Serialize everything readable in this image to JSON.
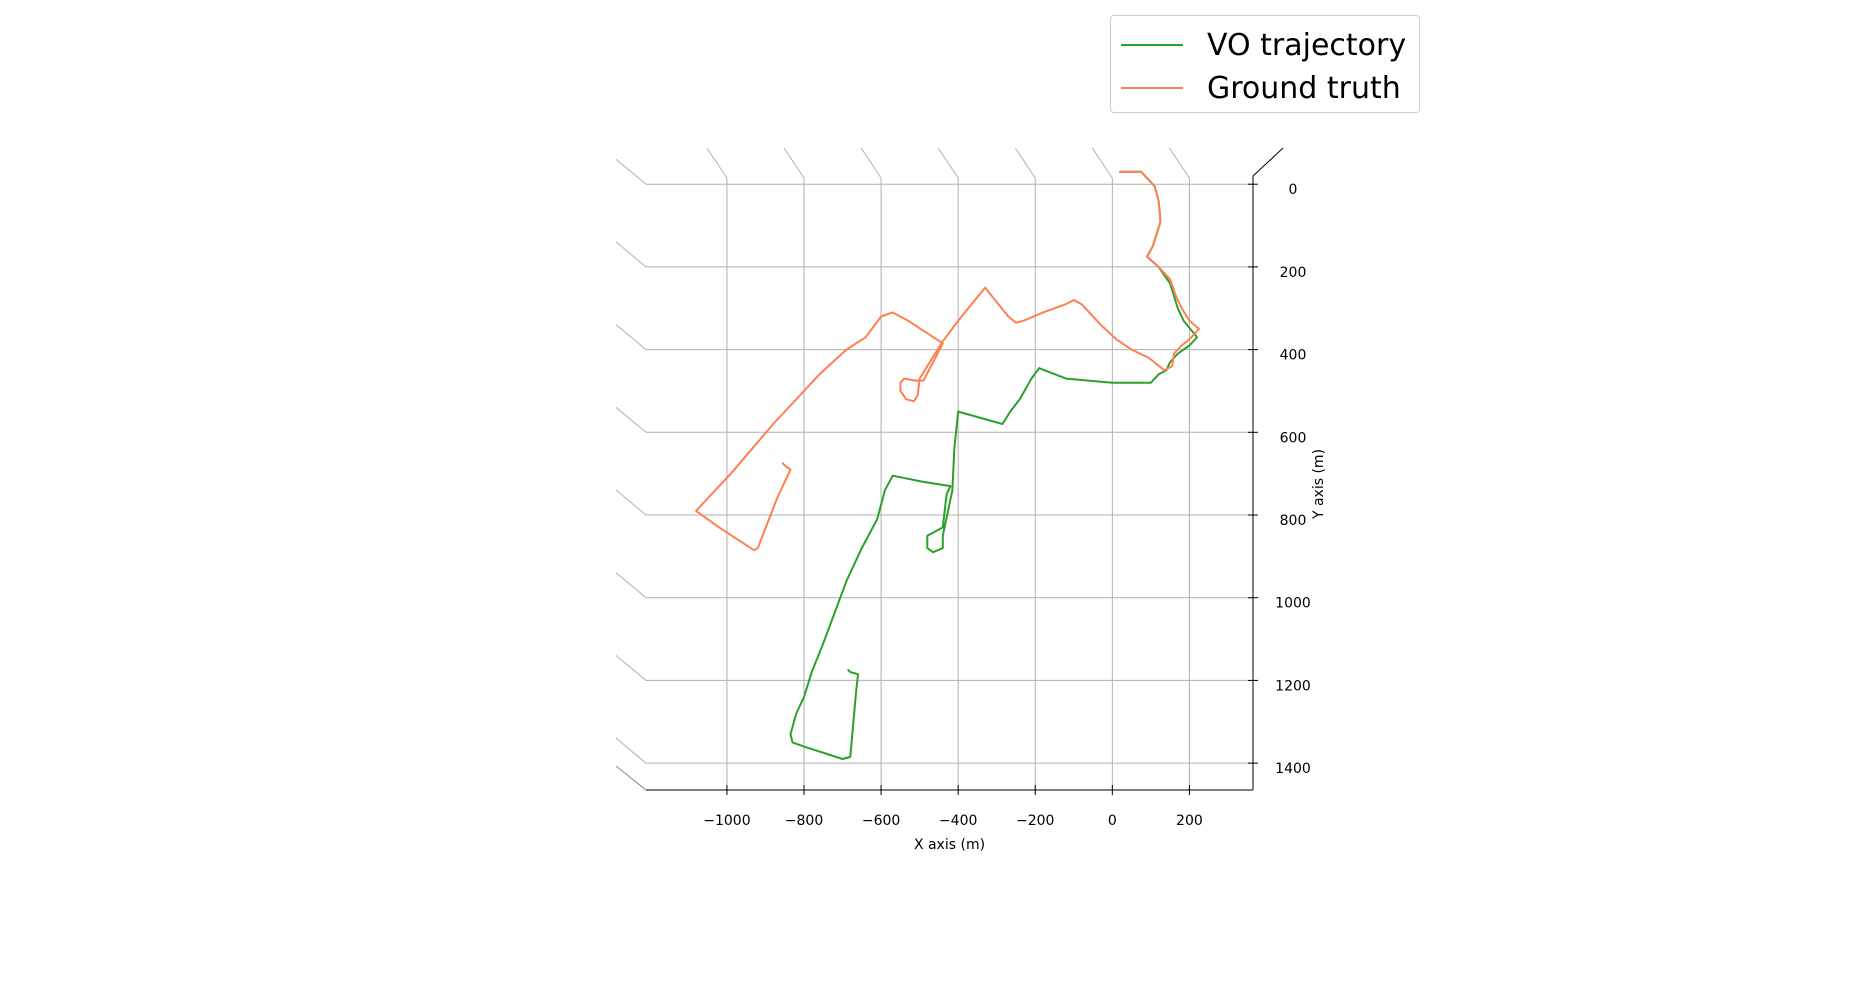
{
  "chart_data": {
    "type": "line",
    "title": "",
    "xlabel": "X axis (m)",
    "ylabel": "Y axis (m)",
    "xlim": [
      -1210,
      365
    ],
    "ylim": [
      -15,
      1465
    ],
    "y_inverted": true,
    "grid": true,
    "legend_position": "top-right",
    "x_ticks": [
      -1000,
      -800,
      -600,
      -400,
      -200,
      0,
      200
    ],
    "x_tick_labels": [
      "−1000",
      "−800",
      "−600",
      "−400",
      "−200",
      "0",
      "200"
    ],
    "y_ticks": [
      0,
      200,
      400,
      600,
      800,
      1000,
      1200,
      1400
    ],
    "y_tick_labels": [
      "0",
      "200",
      "400",
      "600",
      "800",
      "1000",
      "1200",
      "1400"
    ],
    "series": [
      {
        "name": "VO trajectory",
        "color": "#2ca02c",
        "points": [
          [
            20,
            -30
          ],
          [
            75,
            -30
          ],
          [
            110,
            5
          ],
          [
            120,
            40
          ],
          [
            125,
            90
          ],
          [
            115,
            120
          ],
          [
            105,
            150
          ],
          [
            90,
            175
          ],
          [
            120,
            200
          ],
          [
            150,
            240
          ],
          [
            170,
            300
          ],
          [
            185,
            330
          ],
          [
            220,
            370
          ],
          [
            200,
            390
          ],
          [
            170,
            410
          ],
          [
            150,
            430
          ],
          [
            140,
            450
          ],
          [
            120,
            460
          ],
          [
            100,
            480
          ],
          [
            0,
            480
          ],
          [
            -120,
            470
          ],
          [
            -190,
            445
          ],
          [
            -210,
            470
          ],
          [
            -240,
            520
          ],
          [
            -265,
            550
          ],
          [
            -285,
            580
          ],
          [
            -400,
            550
          ],
          [
            -410,
            640
          ],
          [
            -415,
            740
          ],
          [
            -440,
            850
          ],
          [
            -440,
            880
          ],
          [
            -465,
            890
          ],
          [
            -480,
            880
          ],
          [
            -480,
            850
          ],
          [
            -460,
            840
          ],
          [
            -440,
            830
          ],
          [
            -430,
            750
          ],
          [
            -420,
            730
          ],
          [
            -490,
            720
          ],
          [
            -570,
            705
          ],
          [
            -590,
            740
          ],
          [
            -610,
            810
          ],
          [
            -650,
            880
          ],
          [
            -690,
            960
          ],
          [
            -710,
            1010
          ],
          [
            -750,
            1110
          ],
          [
            -780,
            1180
          ],
          [
            -800,
            1240
          ],
          [
            -820,
            1280
          ],
          [
            -835,
            1330
          ],
          [
            -830,
            1350
          ],
          [
            -800,
            1360
          ],
          [
            -700,
            1390
          ],
          [
            -680,
            1385
          ],
          [
            -665,
            1230
          ],
          [
            -660,
            1185
          ],
          [
            -680,
            1180
          ],
          [
            -685,
            1175
          ]
        ]
      },
      {
        "name": "Ground truth",
        "color": "#ff7f50",
        "points": [
          [
            20,
            -30
          ],
          [
            75,
            -30
          ],
          [
            110,
            5
          ],
          [
            120,
            40
          ],
          [
            125,
            90
          ],
          [
            115,
            120
          ],
          [
            105,
            150
          ],
          [
            90,
            175
          ],
          [
            120,
            200
          ],
          [
            150,
            230
          ],
          [
            165,
            270
          ],
          [
            180,
            300
          ],
          [
            200,
            330
          ],
          [
            225,
            350
          ],
          [
            200,
            375
          ],
          [
            180,
            390
          ],
          [
            160,
            410
          ],
          [
            155,
            440
          ],
          [
            135,
            450
          ],
          [
            95,
            420
          ],
          [
            50,
            400
          ],
          [
            10,
            375
          ],
          [
            -30,
            340
          ],
          [
            -80,
            290
          ],
          [
            -100,
            280
          ],
          [
            -120,
            290
          ],
          [
            -180,
            310
          ],
          [
            -230,
            330
          ],
          [
            -250,
            335
          ],
          [
            -270,
            320
          ],
          [
            -330,
            250
          ],
          [
            -400,
            330
          ],
          [
            -440,
            380
          ],
          [
            -500,
            470
          ],
          [
            -505,
            510
          ],
          [
            -515,
            525
          ],
          [
            -535,
            520
          ],
          [
            -550,
            500
          ],
          [
            -550,
            480
          ],
          [
            -540,
            470
          ],
          [
            -510,
            475
          ],
          [
            -490,
            475
          ],
          [
            -440,
            385
          ],
          [
            -530,
            330
          ],
          [
            -570,
            310
          ],
          [
            -600,
            320
          ],
          [
            -640,
            370
          ],
          [
            -690,
            400
          ],
          [
            -760,
            460
          ],
          [
            -800,
            500
          ],
          [
            -880,
            580
          ],
          [
            -990,
            700
          ],
          [
            -1060,
            770
          ],
          [
            -1080,
            790
          ],
          [
            -1020,
            830
          ],
          [
            -930,
            885
          ],
          [
            -920,
            880
          ],
          [
            -870,
            760
          ],
          [
            -840,
            700
          ],
          [
            -835,
            690
          ],
          [
            -850,
            680
          ],
          [
            -855,
            675
          ]
        ]
      }
    ]
  },
  "legend": {
    "items": [
      {
        "label": "VO trajectory",
        "color": "#2ca02c"
      },
      {
        "label": "Ground truth",
        "color": "#ff7f50"
      }
    ]
  }
}
